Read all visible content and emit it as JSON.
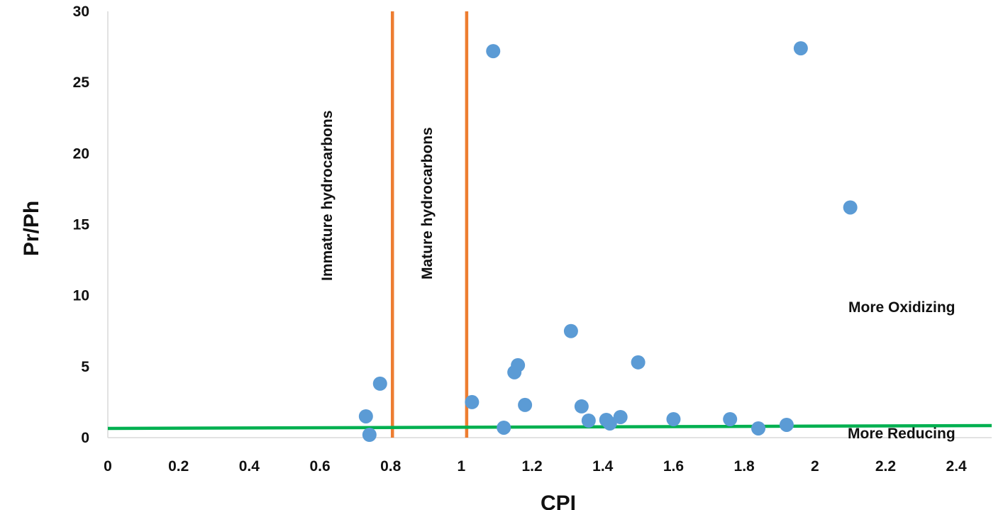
{
  "chart_data": {
    "type": "scatter",
    "title": "",
    "xlabel": "CPI",
    "ylabel": "Pr/Ph",
    "xlim": [
      0,
      2.5
    ],
    "ylim": [
      0,
      30
    ],
    "xticks": [
      "0",
      "0.2",
      "0.4",
      "0.6",
      "0.8",
      "1",
      "1.2",
      "1.4",
      "1.6",
      "1.8",
      "2",
      "2.2",
      "2.4"
    ],
    "yticks": [
      "0",
      "5",
      "10",
      "15",
      "20",
      "25",
      "30"
    ],
    "grid": false,
    "legend": "none",
    "series": [
      {
        "color": "#5b9bd5",
        "points": [
          {
            "x": 0.73,
            "y": 1.5
          },
          {
            "x": 0.74,
            "y": 0.2
          },
          {
            "x": 0.77,
            "y": 3.8
          },
          {
            "x": 1.03,
            "y": 2.5
          },
          {
            "x": 1.09,
            "y": 27.2
          },
          {
            "x": 1.12,
            "y": 0.7
          },
          {
            "x": 1.15,
            "y": 4.6
          },
          {
            "x": 1.16,
            "y": 5.1
          },
          {
            "x": 1.18,
            "y": 2.3
          },
          {
            "x": 1.31,
            "y": 7.5
          },
          {
            "x": 1.34,
            "y": 2.2
          },
          {
            "x": 1.36,
            "y": 1.2
          },
          {
            "x": 1.41,
            "y": 1.25
          },
          {
            "x": 1.42,
            "y": 1.0
          },
          {
            "x": 1.45,
            "y": 1.45
          },
          {
            "x": 1.5,
            "y": 5.3
          },
          {
            "x": 1.6,
            "y": 1.3
          },
          {
            "x": 1.76,
            "y": 1.3
          },
          {
            "x": 1.84,
            "y": 0.65
          },
          {
            "x": 1.92,
            "y": 0.9
          },
          {
            "x": 1.96,
            "y": 27.4
          },
          {
            "x": 2.1,
            "y": 16.2
          }
        ]
      }
    ],
    "vertical_lines": [
      {
        "x": 0.805,
        "color": "#ed7d31"
      },
      {
        "x": 1.015,
        "color": "#ed7d31"
      }
    ],
    "boundary_line": {
      "x1": 0,
      "y1": 0.65,
      "x2": 2.5,
      "y2": 0.85,
      "color": "#00b050"
    },
    "annotations": {
      "immature": "Immature hydrocarbons",
      "mature": "Mature hydrocarbons",
      "oxidizing": "More Oxidizing",
      "reducing": "More Reducing"
    }
  }
}
